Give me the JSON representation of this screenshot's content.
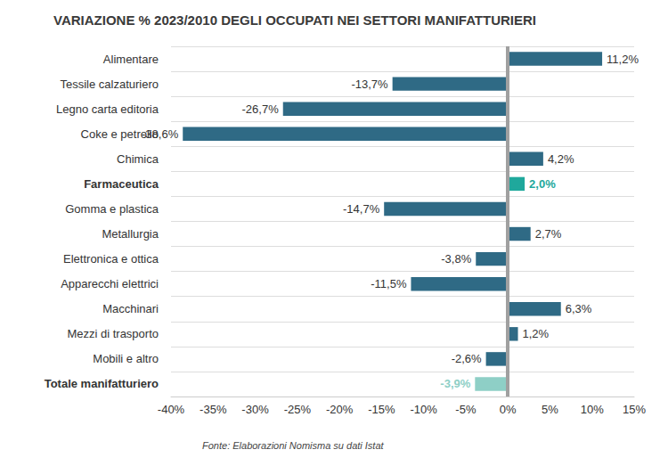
{
  "chart_data": {
    "type": "bar",
    "orientation": "horizontal",
    "title": "VARIAZIONE % 2023/2010 DEGLI OCCUPATI NEI SETTORI MANIFATTURIERI",
    "source": "Fonte: Elaborazioni Nomisma su dati Istat",
    "categories": [
      "Alimentare",
      "Tessile calzaturiero",
      "Legno carta editoria",
      "Coke e petrolio",
      "Chimica",
      "Farmaceutica",
      "Gomma e plastica",
      "Metallurgia",
      "Elettronica e ottica",
      "Apparecchi elettrici",
      "Macchinari",
      "Mezzi di trasporto",
      "Mobili e altro",
      "Totale manifatturiero"
    ],
    "values": [
      11.2,
      -13.7,
      -26.7,
      -38.6,
      4.2,
      2.0,
      -14.7,
      2.7,
      -3.8,
      -11.5,
      6.3,
      1.2,
      -2.6,
      -3.9
    ],
    "value_labels": [
      "11,2%",
      "-13,7%",
      "-26,7%",
      "-38,6%",
      "4,2%",
      "2,0%",
      "-14,7%",
      "2,7%",
      "-3,8%",
      "-11,5%",
      "6,3%",
      "1,2%",
      "-2,6%",
      "-3,9%"
    ],
    "colors": [
      "#2f6a85",
      "#2f6a85",
      "#2f6a85",
      "#2f6a85",
      "#2f6a85",
      "#1fa89c",
      "#2f6a85",
      "#2f6a85",
      "#2f6a85",
      "#2f6a85",
      "#2f6a85",
      "#2f6a85",
      "#2f6a85",
      "#8ecfc6"
    ],
    "xlim": [
      -40,
      15
    ],
    "xticks": [
      {
        "value": -40,
        "label": "-40%"
      },
      {
        "value": -35,
        "label": "-35%"
      },
      {
        "value": -30,
        "label": "-30%"
      },
      {
        "value": -25,
        "label": "-25%"
      },
      {
        "value": -20,
        "label": "-20%"
      },
      {
        "value": -15,
        "label": "-15%"
      },
      {
        "value": -10,
        "label": "-10%"
      },
      {
        "value": -5,
        "label": "-5%"
      },
      {
        "value": 0,
        "label": "0%"
      },
      {
        "value": 5,
        "label": "5%"
      },
      {
        "value": 10,
        "label": "10%"
      },
      {
        "value": 15,
        "label": "15%"
      }
    ],
    "data_labels": true,
    "grid": true
  }
}
